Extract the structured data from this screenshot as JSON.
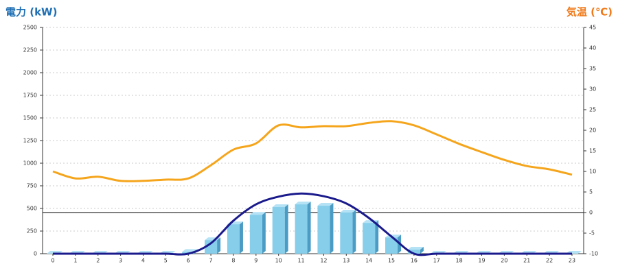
{
  "chart_data": {
    "type": "combo",
    "y_title": "電力 (kW)",
    "y2_title": "気温 (℃)",
    "y_title_color": "#1f6fb4",
    "y2_title_color": "#f07a1a",
    "categories": [
      "0",
      "1",
      "2",
      "3",
      "4",
      "5",
      "6",
      "7",
      "8",
      "9",
      "10",
      "11",
      "12",
      "13",
      "14",
      "15",
      "16",
      "17",
      "18",
      "19",
      "20",
      "21",
      "22",
      "23"
    ],
    "ylim": [
      0,
      2500
    ],
    "yticks": [
      0,
      250,
      500,
      750,
      1000,
      1250,
      1500,
      1750,
      2000,
      2250,
      2500
    ],
    "y2lim": [
      -10,
      45
    ],
    "y2ticks": [
      -10,
      -5,
      0,
      5,
      10,
      15,
      20,
      25,
      30,
      35,
      40,
      45
    ],
    "grid": true,
    "series": [
      {
        "type": "bar",
        "color": "#87ceeb",
        "axis": "y",
        "values": [
          0,
          0,
          0,
          0,
          0,
          0,
          20,
          150,
          325,
          430,
          515,
          545,
          530,
          455,
          340,
          180,
          45,
          0,
          0,
          0,
          0,
          0,
          0,
          0
        ]
      },
      {
        "type": "line",
        "color": "#1a1a8c",
        "axis": "y",
        "values": [
          0,
          0,
          0,
          0,
          0,
          0,
          0,
          115,
          365,
          545,
          630,
          665,
          635,
          555,
          395,
          190,
          0,
          0,
          0,
          0,
          0,
          0,
          0,
          0
        ]
      },
      {
        "type": "line",
        "color": "#f5a51c",
        "axis": "y2",
        "values": [
          10,
          8.3,
          8.7,
          7.7,
          7.7,
          8,
          8.3,
          11.5,
          15.3,
          16.8,
          21.2,
          20.7,
          21,
          21,
          21.8,
          22.2,
          21.2,
          19,
          16.7,
          14.7,
          12.8,
          11.3,
          10.5,
          9.2
        ]
      }
    ]
  }
}
